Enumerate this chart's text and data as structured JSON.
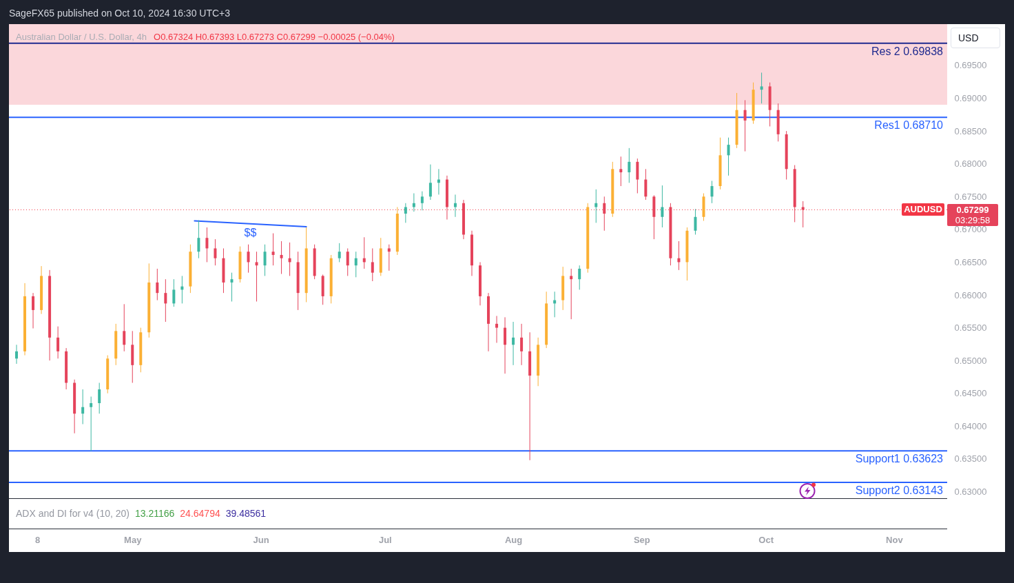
{
  "chart_data": {
    "type": "candlestick",
    "title": "Australian Dollar / U.S. Dollar, 4h",
    "subtitle": "O0.67324 H0.67393 L0.67273 C0.67299 −0.00025 (−0.04%)",
    "x": [
      "2024-04-03",
      "2024-04-05",
      "2024-04-07",
      "2024-04-09",
      "2024-04-11",
      "2024-04-13",
      "2024-04-15",
      "2024-04-17",
      "2024-04-19",
      "2024-04-21",
      "2024-04-23",
      "2024-04-25",
      "2024-04-27",
      "2024-04-29",
      "2024-05-01",
      "2024-05-03",
      "2024-05-05",
      "2024-05-07",
      "2024-05-09",
      "2024-05-11",
      "2024-05-13",
      "2024-05-15",
      "2024-05-17",
      "2024-05-19",
      "2024-05-21",
      "2024-05-23",
      "2024-05-25",
      "2024-05-27",
      "2024-05-29",
      "2024-05-31",
      "2024-06-02",
      "2024-06-04",
      "2024-06-06",
      "2024-06-08",
      "2024-06-10",
      "2024-06-12",
      "2024-06-14",
      "2024-06-16",
      "2024-06-18",
      "2024-06-20",
      "2024-06-22",
      "2024-06-24",
      "2024-06-26",
      "2024-06-28",
      "2024-06-30",
      "2024-07-02",
      "2024-07-04",
      "2024-07-06",
      "2024-07-08",
      "2024-07-10",
      "2024-07-12",
      "2024-07-14",
      "2024-07-16",
      "2024-07-18",
      "2024-07-20",
      "2024-07-22",
      "2024-07-24",
      "2024-07-26",
      "2024-07-28",
      "2024-07-30",
      "2024-08-01",
      "2024-08-03",
      "2024-08-05",
      "2024-08-07",
      "2024-08-09",
      "2024-08-11",
      "2024-08-13",
      "2024-08-15",
      "2024-08-17",
      "2024-08-19",
      "2024-08-21",
      "2024-08-23",
      "2024-08-25",
      "2024-08-27",
      "2024-08-29",
      "2024-08-31",
      "2024-09-02",
      "2024-09-04",
      "2024-09-06",
      "2024-09-08",
      "2024-09-10",
      "2024-09-12",
      "2024-09-14",
      "2024-09-16",
      "2024-09-18",
      "2024-09-20",
      "2024-09-22",
      "2024-09-24",
      "2024-09-26",
      "2024-09-28",
      "2024-09-30",
      "2024-10-02",
      "2024-10-04",
      "2024-10-06",
      "2024-10-08",
      "2024-10-10"
    ],
    "ohlc": [
      [
        0.6503,
        0.6524,
        0.6495,
        0.6514
      ],
      [
        0.6514,
        0.6618,
        0.6508,
        0.6598
      ],
      [
        0.6598,
        0.6603,
        0.6549,
        0.6577
      ],
      [
        0.6577,
        0.6644,
        0.6571,
        0.6629
      ],
      [
        0.6629,
        0.6638,
        0.65,
        0.6535
      ],
      [
        0.6535,
        0.6552,
        0.6503,
        0.6514
      ],
      [
        0.6514,
        0.6519,
        0.6456,
        0.6466
      ],
      [
        0.6466,
        0.6471,
        0.6389,
        0.6419
      ],
      [
        0.6419,
        0.6456,
        0.6403,
        0.6429
      ],
      [
        0.6429,
        0.6445,
        0.6362,
        0.6435
      ],
      [
        0.6435,
        0.6466,
        0.6419,
        0.6456
      ],
      [
        0.6456,
        0.6508,
        0.645,
        0.6503
      ],
      [
        0.6503,
        0.6556,
        0.6493,
        0.6545
      ],
      [
        0.6545,
        0.6586,
        0.6514,
        0.6524
      ],
      [
        0.6524,
        0.6545,
        0.6466,
        0.6493
      ],
      [
        0.6493,
        0.655,
        0.6482,
        0.6543
      ],
      [
        0.6543,
        0.6648,
        0.6535,
        0.6619
      ],
      [
        0.6619,
        0.664,
        0.6592,
        0.6603
      ],
      [
        0.6603,
        0.6624,
        0.6559,
        0.6587
      ],
      [
        0.6587,
        0.6624,
        0.6582,
        0.6608
      ],
      [
        0.6608,
        0.6629,
        0.6587,
        0.6613
      ],
      [
        0.6613,
        0.6677,
        0.6603,
        0.6666
      ],
      [
        0.6666,
        0.6714,
        0.6656,
        0.6687
      ],
      [
        0.6687,
        0.6703,
        0.665,
        0.6671
      ],
      [
        0.6671,
        0.6685,
        0.6645,
        0.6656
      ],
      [
        0.6656,
        0.6671,
        0.6603,
        0.6619
      ],
      [
        0.6619,
        0.6634,
        0.659,
        0.6624
      ],
      [
        0.6624,
        0.6674,
        0.6619,
        0.6666
      ],
      [
        0.6666,
        0.6677,
        0.6634,
        0.665
      ],
      [
        0.665,
        0.6666,
        0.659,
        0.6645
      ],
      [
        0.6645,
        0.6677,
        0.6629,
        0.6666
      ],
      [
        0.6666,
        0.6694,
        0.6645,
        0.6661
      ],
      [
        0.6661,
        0.6682,
        0.6632,
        0.6656
      ],
      [
        0.6656,
        0.668,
        0.6629,
        0.665
      ],
      [
        0.665,
        0.6666,
        0.6577,
        0.6603
      ],
      [
        0.6603,
        0.6703,
        0.6589,
        0.6671
      ],
      [
        0.6671,
        0.6677,
        0.6624,
        0.6629
      ],
      [
        0.6629,
        0.6631,
        0.6585,
        0.6598
      ],
      [
        0.6598,
        0.6661,
        0.6587,
        0.6656
      ],
      [
        0.6656,
        0.6679,
        0.665,
        0.6666
      ],
      [
        0.6666,
        0.6671,
        0.6629,
        0.6645
      ],
      [
        0.6645,
        0.6666,
        0.6627,
        0.6656
      ],
      [
        0.6656,
        0.6688,
        0.664,
        0.665
      ],
      [
        0.665,
        0.6671,
        0.6621,
        0.6634
      ],
      [
        0.6634,
        0.6687,
        0.6629,
        0.6671
      ],
      [
        0.6671,
        0.6677,
        0.6637,
        0.6666
      ],
      [
        0.6666,
        0.6734,
        0.6661,
        0.6724
      ],
      [
        0.6724,
        0.674,
        0.671,
        0.6734
      ],
      [
        0.6734,
        0.6755,
        0.6727,
        0.674
      ],
      [
        0.674,
        0.6758,
        0.6729,
        0.675
      ],
      [
        0.675,
        0.6799,
        0.6745,
        0.6771
      ],
      [
        0.6771,
        0.6792,
        0.6753,
        0.6776
      ],
      [
        0.6776,
        0.6782,
        0.6715,
        0.6734
      ],
      [
        0.6734,
        0.6753,
        0.6719,
        0.674
      ],
      [
        0.674,
        0.6745,
        0.6685,
        0.6692
      ],
      [
        0.6692,
        0.6698,
        0.6629,
        0.6645
      ],
      [
        0.6645,
        0.665,
        0.6584,
        0.6598
      ],
      [
        0.6598,
        0.6603,
        0.6514,
        0.6556
      ],
      [
        0.6556,
        0.6568,
        0.6527,
        0.655
      ],
      [
        0.655,
        0.6566,
        0.648,
        0.6524
      ],
      [
        0.6524,
        0.6559,
        0.6493,
        0.6535
      ],
      [
        0.6535,
        0.6556,
        0.6493,
        0.6514
      ],
      [
        0.6514,
        0.6543,
        0.6348,
        0.6477
      ],
      [
        0.6477,
        0.6535,
        0.6461,
        0.6524
      ],
      [
        0.6524,
        0.6605,
        0.6519,
        0.6587
      ],
      [
        0.6587,
        0.6605,
        0.6566,
        0.6592
      ],
      [
        0.6592,
        0.6643,
        0.6577,
        0.6629
      ],
      [
        0.6629,
        0.664,
        0.6563,
        0.6624
      ],
      [
        0.6624,
        0.6645,
        0.6608,
        0.664
      ],
      [
        0.664,
        0.674,
        0.6634,
        0.6734
      ],
      [
        0.6734,
        0.6761,
        0.671,
        0.674
      ],
      [
        0.674,
        0.675,
        0.6698,
        0.6724
      ],
      [
        0.6724,
        0.6803,
        0.6719,
        0.6792
      ],
      [
        0.6792,
        0.6811,
        0.6766,
        0.6787
      ],
      [
        0.6787,
        0.6824,
        0.6771,
        0.6803
      ],
      [
        0.6803,
        0.6808,
        0.6755,
        0.6776
      ],
      [
        0.6776,
        0.6792,
        0.6745,
        0.675
      ],
      [
        0.675,
        0.6752,
        0.6685,
        0.6719
      ],
      [
        0.6719,
        0.6767,
        0.6703,
        0.6734
      ],
      [
        0.6734,
        0.674,
        0.6645,
        0.6656
      ],
      [
        0.6656,
        0.6682,
        0.6638,
        0.665
      ],
      [
        0.665,
        0.6703,
        0.6622,
        0.6698
      ],
      [
        0.6698,
        0.6731,
        0.6692,
        0.6719
      ],
      [
        0.6719,
        0.6755,
        0.6713,
        0.675
      ],
      [
        0.675,
        0.6774,
        0.674,
        0.6766
      ],
      [
        0.6766,
        0.684,
        0.6761,
        0.6813
      ],
      [
        0.6813,
        0.684,
        0.6782,
        0.6829
      ],
      [
        0.6829,
        0.6908,
        0.6824,
        0.6882
      ],
      [
        0.6882,
        0.6897,
        0.6819,
        0.6866
      ],
      [
        0.6866,
        0.6924,
        0.6861,
        0.6913
      ],
      [
        0.6913,
        0.6939,
        0.6892,
        0.6918
      ],
      [
        0.6918,
        0.6924,
        0.6857,
        0.6882
      ],
      [
        0.6882,
        0.6892,
        0.6834,
        0.6845
      ],
      [
        0.6845,
        0.685,
        0.6776,
        0.6792
      ],
      [
        0.6792,
        0.6798,
        0.6711,
        0.6734
      ],
      [
        0.6734,
        0.6743,
        0.6703,
        0.67299
      ]
    ],
    "colors": [
      "#3db8a3",
      "#fbb034",
      "#e5435b",
      "#fbb034",
      "#e5435b",
      "#e5435b",
      "#e5435b",
      "#e5435b",
      "#3db8a3",
      "#3db8a3",
      "#3db8a3",
      "#fbb034",
      "#fbb034",
      "#e5435b",
      "#e5435b",
      "#fbb034",
      "#fbb034",
      "#e5435b",
      "#e5435b",
      "#3db8a3",
      "#3db8a3",
      "#fbb034",
      "#3db8a3",
      "#e5435b",
      "#e5435b",
      "#e5435b",
      "#3db8a3",
      "#fbb034",
      "#e5435b",
      "#e5435b",
      "#3db8a3",
      "#e5435b",
      "#e5435b",
      "#e5435b",
      "#e5435b",
      "#fbb034",
      "#e5435b",
      "#e5435b",
      "#fbb034",
      "#3db8a3",
      "#e5435b",
      "#3db8a3",
      "#e5435b",
      "#e5435b",
      "#fbb034",
      "#e5435b",
      "#fbb034",
      "#3db8a3",
      "#3db8a3",
      "#3db8a3",
      "#3db8a3",
      "#3db8a3",
      "#e5435b",
      "#3db8a3",
      "#e5435b",
      "#e5435b",
      "#e5435b",
      "#e5435b",
      "#e5435b",
      "#e5435b",
      "#3db8a3",
      "#e5435b",
      "#e5435b",
      "#fbb034",
      "#fbb034",
      "#3db8a3",
      "#fbb034",
      "#e5435b",
      "#3db8a3",
      "#fbb034",
      "#3db8a3",
      "#e5435b",
      "#fbb034",
      "#e5435b",
      "#3db8a3",
      "#e5435b",
      "#e5435b",
      "#e5435b",
      "#3db8a3",
      "#e5435b",
      "#e5435b",
      "#fbb034",
      "#3db8a3",
      "#fbb034",
      "#3db8a3",
      "#fbb034",
      "#3db8a3",
      "#fbb034",
      "#e5435b",
      "#fbb034",
      "#3db8a3",
      "#e5435b",
      "#e5435b",
      "#e5435b",
      "#e5435b",
      "#e5435b"
    ],
    "series": [
      {
        "type": "line",
        "name": "$$",
        "color": "#2962ff",
        "x": [
          "2024-05-16",
          "2024-06-12"
        ],
        "values": [
          0.6713,
          0.6704
        ]
      }
    ],
    "xlim": [
      "2024-04-02",
      "2024-11-13"
    ],
    "xticks": [
      {
        "value": "2024-04-08",
        "label": "8"
      },
      {
        "value": "2024-05-01",
        "label": "May"
      },
      {
        "value": "2024-06-01",
        "label": "Jun"
      },
      {
        "value": "2024-07-01",
        "label": "Jul"
      },
      {
        "value": "2024-08-01",
        "label": "Aug"
      },
      {
        "value": "2024-09-01",
        "label": "Sep"
      },
      {
        "value": "2024-10-01",
        "label": "Oct"
      },
      {
        "value": "2024-11-01",
        "label": "Nov"
      }
    ],
    "ylim": [
      0.629,
      0.7013
    ],
    "yticks": [
      {
        "value": 0.63,
        "label": "0.63000"
      },
      {
        "value": 0.635,
        "label": "0.63500"
      },
      {
        "value": 0.64,
        "label": "0.64000"
      },
      {
        "value": 0.645,
        "label": "0.64500"
      },
      {
        "value": 0.65,
        "label": "0.65000"
      },
      {
        "value": 0.655,
        "label": "0.65500"
      },
      {
        "value": 0.66,
        "label": "0.66000"
      },
      {
        "value": 0.665,
        "label": "0.66500"
      },
      {
        "value": 0.67,
        "label": "0.67000"
      },
      {
        "value": 0.675,
        "label": "0.67500"
      },
      {
        "value": 0.68,
        "label": "0.68000"
      },
      {
        "value": 0.685,
        "label": "0.68500"
      },
      {
        "value": 0.69,
        "label": "0.69000"
      },
      {
        "value": 0.695,
        "label": "0.69500"
      }
    ],
    "bands": [
      {
        "axis": "y",
        "from": 0.689,
        "to": 0.7013,
        "color": "#fbd7db"
      }
    ],
    "ref_lines": [
      {
        "axis": "y",
        "value": 0.69838,
        "label": "Res 2 0.69838",
        "color": "#1f2a8f"
      },
      {
        "axis": "y",
        "value": 0.6871,
        "label": "Res1 0.68710",
        "color": "#2962ff"
      },
      {
        "axis": "y",
        "value": 0.63623,
        "label": "Support1 0.63623",
        "color": "#2962ff"
      },
      {
        "axis": "y",
        "value": 0.63143,
        "label": "Support2 0.63143",
        "color": "#2962ff"
      },
      {
        "axis": "y",
        "value": 0.67299,
        "label": "AUDUSD",
        "color": "#f23645",
        "line_style": "dotted"
      }
    ],
    "annotations": [
      "SageFX65 published on Oct 10, 2024 16:30 UTC+3",
      "ADX and DI for v4 (10, 20)",
      "13.21166",
      "24.64794",
      "39.48561",
      "USD",
      "0.67299",
      "03:29:58"
    ]
  }
}
